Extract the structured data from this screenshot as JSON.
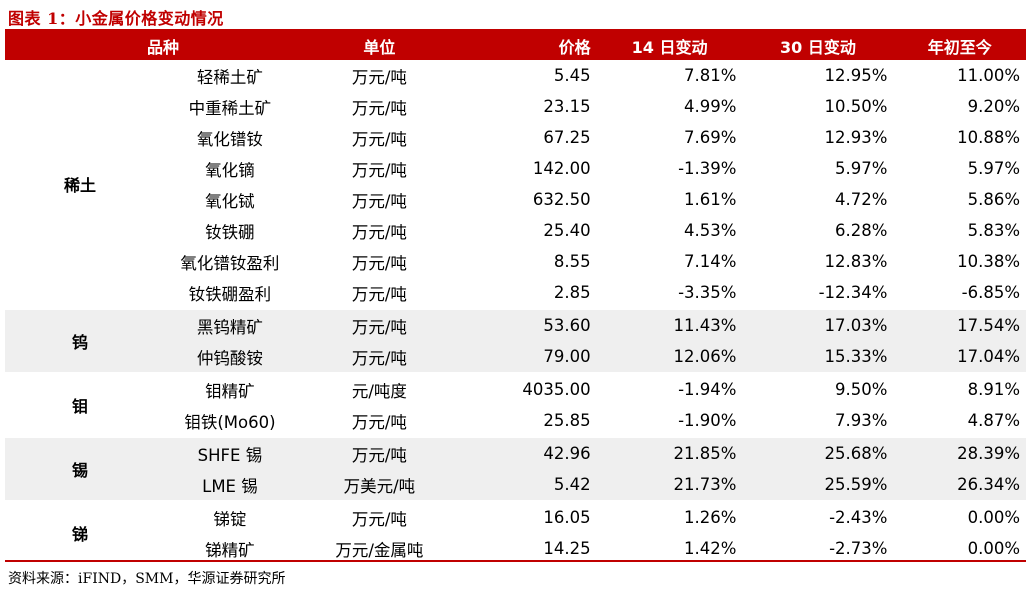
{
  "title": "图表 1：小金属价格变动情况",
  "columns": [
    "品种",
    "单位",
    "价格",
    "14 日变动",
    "30 日变动",
    "年初至今"
  ],
  "groups": [
    {
      "name": "稀土",
      "rows": [
        {
          "product": "轻稀土矿",
          "unit": "万元/吨",
          "price": "5.45",
          "d14": "7.81%",
          "d30": "12.95%",
          "ytd": "11.00%"
        },
        {
          "product": "中重稀土矿",
          "unit": "万元/吨",
          "price": "23.15",
          "d14": "4.99%",
          "d30": "10.50%",
          "ytd": "9.20%"
        },
        {
          "product": "氧化镨钕",
          "unit": "万元/吨",
          "price": "67.25",
          "d14": "7.69%",
          "d30": "12.93%",
          "ytd": "10.88%"
        },
        {
          "product": "氧化镝",
          "unit": "万元/吨",
          "price": "142.00",
          "d14": "-1.39%",
          "d30": "5.97%",
          "ytd": "5.97%"
        },
        {
          "product": "氧化铽",
          "unit": "万元/吨",
          "price": "632.50",
          "d14": "1.61%",
          "d30": "4.72%",
          "ytd": "5.86%"
        },
        {
          "product": "钕铁硼",
          "unit": "万元/吨",
          "price": "25.40",
          "d14": "4.53%",
          "d30": "6.28%",
          "ytd": "5.83%"
        },
        {
          "product": "氧化镨钕盈利",
          "unit": "万元/吨",
          "price": "8.55",
          "d14": "7.14%",
          "d30": "12.83%",
          "ytd": "10.38%"
        },
        {
          "product": "钕铁硼盈利",
          "unit": "万元/吨",
          "price": "2.85",
          "d14": "-3.35%",
          "d30": "-12.34%",
          "ytd": "-6.85%"
        }
      ]
    },
    {
      "name": "钨",
      "rows": [
        {
          "product": "黑钨精矿",
          "unit": "万元/吨",
          "price": "53.60",
          "d14": "11.43%",
          "d30": "17.03%",
          "ytd": "17.54%"
        },
        {
          "product": "仲钨酸铵",
          "unit": "万元/吨",
          "price": "79.00",
          "d14": "12.06%",
          "d30": "15.33%",
          "ytd": "17.04%"
        }
      ]
    },
    {
      "name": "钼",
      "rows": [
        {
          "product": "钼精矿",
          "unit": "元/吨度",
          "price": "4035.00",
          "d14": "-1.94%",
          "d30": "9.50%",
          "ytd": "8.91%"
        },
        {
          "product": "钼铁(Mo60)",
          "unit": "万元/吨",
          "price": "25.85",
          "d14": "-1.90%",
          "d30": "7.93%",
          "ytd": "4.87%"
        }
      ]
    },
    {
      "name": "锡",
      "rows": [
        {
          "product": "SHFE 锡",
          "unit": "万元/吨",
          "price": "42.96",
          "d14": "21.85%",
          "d30": "25.68%",
          "ytd": "28.39%"
        },
        {
          "product": "LME 锡",
          "unit": "万美元/吨",
          "price": "5.42",
          "d14": "21.73%",
          "d30": "25.59%",
          "ytd": "26.34%"
        }
      ]
    },
    {
      "name": "锑",
      "rows": [
        {
          "product": "锑锭",
          "unit": "万元/吨",
          "price": "16.05",
          "d14": "1.26%",
          "d30": "-2.43%",
          "ytd": "0.00%"
        },
        {
          "product": "锑精矿",
          "unit": "万元/金属吨",
          "price": "14.25",
          "d14": "1.42%",
          "d30": "-2.73%",
          "ytd": "0.00%"
        }
      ]
    }
  ],
  "source": "资料来源：iFIND，SMM，华源证券研究所",
  "colors": {
    "header_bg": "#c00000",
    "title": "#c00000",
    "shade": "#efefef"
  }
}
